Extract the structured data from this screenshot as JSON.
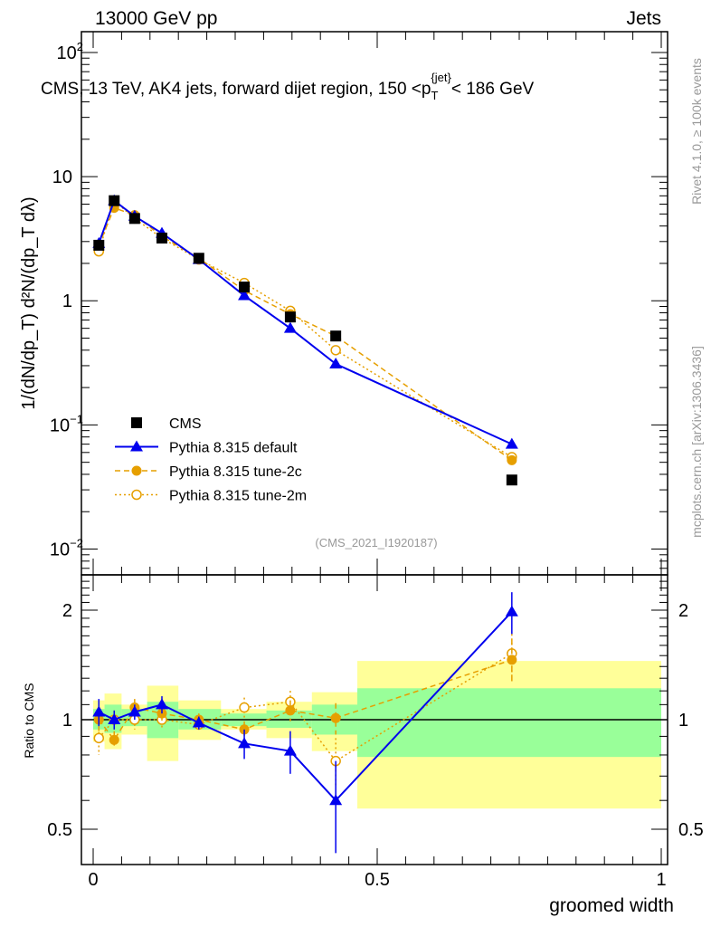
{
  "header": {
    "left": "13000 GeV pp",
    "right": "Jets"
  },
  "side_labels": {
    "rivet": "Rivet 4.1.0, ≥ 100k events",
    "mcplots": "mcplots.cern.ch [arXiv:1306.3436]"
  },
  "chart_data": {
    "type": "scatter",
    "title": "CMS, 13 TeV, AK4 jets, forward dijet region, 150 <p_T^{jet}< 186 GeV",
    "title_parts": {
      "main": "CMS, 13 TeV, AK4 jets, forward dijet region, 150 <p",
      "sub": "T",
      "sup": "{jet}",
      "end": "< 186 GeV"
    },
    "analysis_tag": "(CMS_2021_I1920187)",
    "xlabel": "groomed width",
    "ylabel": "1/(dN/dp_T) d²N/(dp_T dλ)",
    "ratio_ylabel": "Ratio to CMS",
    "xlim": [
      -0.02,
      1.0
    ],
    "ylim": [
      0.0062,
      147
    ],
    "yscale": "log",
    "ratio_ylim": [
      0.4,
      2.5
    ],
    "x_ticks": [
      {
        "v": 0,
        "label": "0"
      },
      {
        "v": 0.5,
        "label": "0.5"
      },
      {
        "v": 1,
        "label": "1"
      }
    ],
    "y_ticks": [
      {
        "v": 100,
        "base": "10",
        "exp": "2"
      },
      {
        "v": 10,
        "base": "10",
        "exp": ""
      },
      {
        "v": 1,
        "base": "1",
        "exp": ""
      },
      {
        "v": 0.1,
        "base": "10",
        "exp": "−1"
      },
      {
        "v": 0.01,
        "base": "10",
        "exp": "−2"
      }
    ],
    "ratio_ticks": [
      {
        "v": 2,
        "label": "2"
      },
      {
        "v": 1,
        "label": "1"
      },
      {
        "v": 0.5,
        "label": "0.5"
      }
    ],
    "bin_edges": [
      0,
      0.02,
      0.05,
      0.095,
      0.15,
      0.225,
      0.305,
      0.385,
      0.465,
      1.0
    ],
    "x": [
      0.01,
      0.037,
      0.073,
      0.121,
      0.186,
      0.266,
      0.347,
      0.427,
      0.737
    ],
    "band_stat": [
      [
        0.94,
        1.07
      ],
      [
        0.92,
        1.1
      ],
      [
        0.96,
        1.07
      ],
      [
        0.89,
        1.12
      ],
      [
        0.94,
        1.07
      ],
      [
        0.96,
        1.04
      ],
      [
        0.95,
        1.06
      ],
      [
        0.91,
        1.1
      ],
      [
        0.79,
        1.22
      ]
    ],
    "band_total": [
      [
        0.87,
        1.13
      ],
      [
        0.83,
        1.18
      ],
      [
        0.91,
        1.1
      ],
      [
        0.77,
        1.24
      ],
      [
        0.88,
        1.13
      ],
      [
        0.94,
        1.07
      ],
      [
        0.89,
        1.12
      ],
      [
        0.82,
        1.19
      ],
      [
        0.57,
        1.45
      ]
    ],
    "series": [
      {
        "name": "CMS",
        "style": "data",
        "color": "#000000",
        "values": [
          2.8,
          6.4,
          4.6,
          3.2,
          2.2,
          1.29,
          0.74,
          0.52,
          0.036
        ]
      },
      {
        "name": "Pythia 8.315 default",
        "style": "solid-triangle",
        "color": "#0000ee",
        "values": [
          2.9,
          6.4,
          4.8,
          3.5,
          2.15,
          1.1,
          0.6,
          0.31,
          0.07
        ],
        "ratio": [
          1.05,
          1.0,
          1.05,
          1.1,
          0.98,
          0.86,
          0.82,
          0.6,
          1.98
        ],
        "ratio_err": [
          0.09,
          0.06,
          0.05,
          0.06,
          0.04,
          0.08,
          0.11,
          0.17,
          0.26
        ]
      },
      {
        "name": "Pythia 8.315 tune-2c",
        "style": "dashed-dot",
        "color": "#e69f00",
        "values": [
          2.8,
          5.6,
          4.9,
          3.3,
          2.2,
          1.21,
          0.78,
          0.52,
          0.052
        ],
        "ratio": [
          1.0,
          0.88,
          1.08,
          1.04,
          1.0,
          0.94,
          1.06,
          1.01,
          1.46
        ],
        "ratio_err": [
          0.08,
          0.05,
          0.06,
          0.05,
          0.04,
          0.05,
          0.07,
          0.1,
          0.2
        ]
      },
      {
        "name": "Pythia 8.315 tune-2m",
        "style": "dotted-circle",
        "color": "#e69f00",
        "values": [
          2.5,
          6.4,
          4.6,
          3.2,
          2.15,
          1.39,
          0.83,
          0.4,
          0.055
        ],
        "ratio": [
          0.89,
          1.0,
          1.0,
          1.0,
          0.97,
          1.08,
          1.12,
          0.77,
          1.52
        ],
        "ratio_err": [
          0.09,
          0.06,
          0.06,
          0.05,
          0.04,
          0.07,
          0.08,
          0.12,
          0.2
        ]
      }
    ],
    "legend_position": "lower-left",
    "colors": {
      "band_stat": "#99ff99",
      "band_total": "#ffff99"
    }
  }
}
